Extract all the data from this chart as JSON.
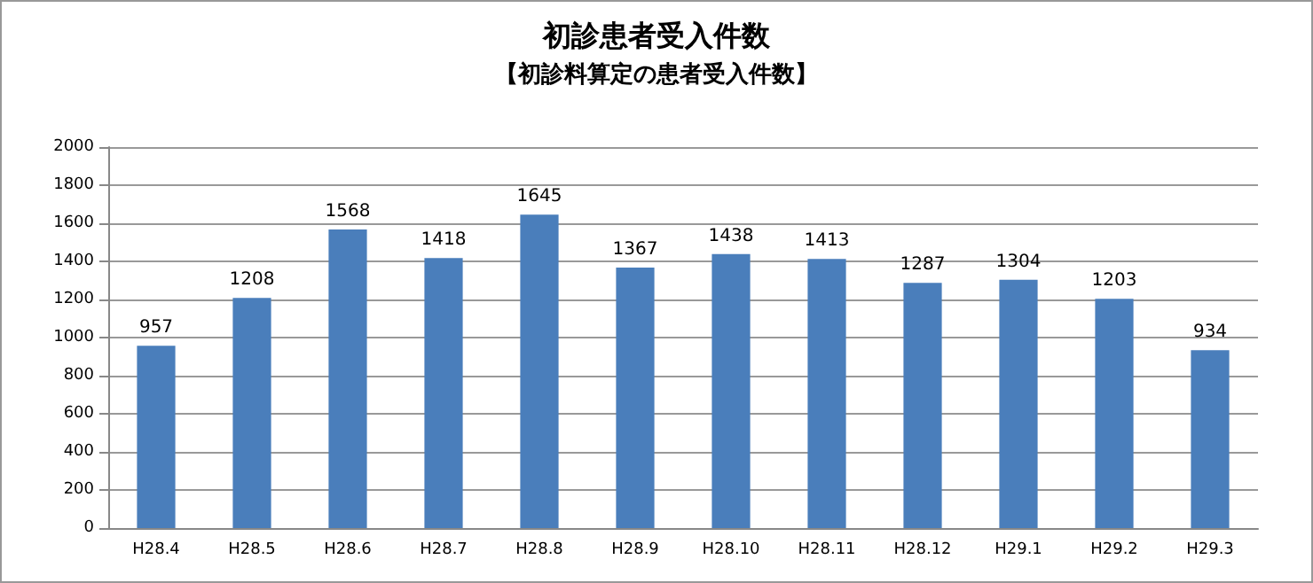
{
  "chart_data": {
    "type": "bar",
    "title": "初診患者受入件数",
    "subtitle": "【初診料算定の患者受入件数】",
    "categories": [
      "H28.4",
      "H28.5",
      "H28.6",
      "H28.7",
      "H28.8",
      "H28.9",
      "H28.10",
      "H28.11",
      "H28.12",
      "H29.1",
      "H29.2",
      "H29.3"
    ],
    "values": [
      957,
      1208,
      1568,
      1418,
      1645,
      1367,
      1438,
      1413,
      1287,
      1304,
      1203,
      934
    ],
    "color": "#4a7ebb",
    "ylim": [
      0,
      2000
    ],
    "yticks": [
      0,
      200,
      400,
      600,
      800,
      1000,
      1200,
      1400,
      1600,
      1800,
      2000
    ],
    "grid": "y",
    "data_labels": true
  }
}
